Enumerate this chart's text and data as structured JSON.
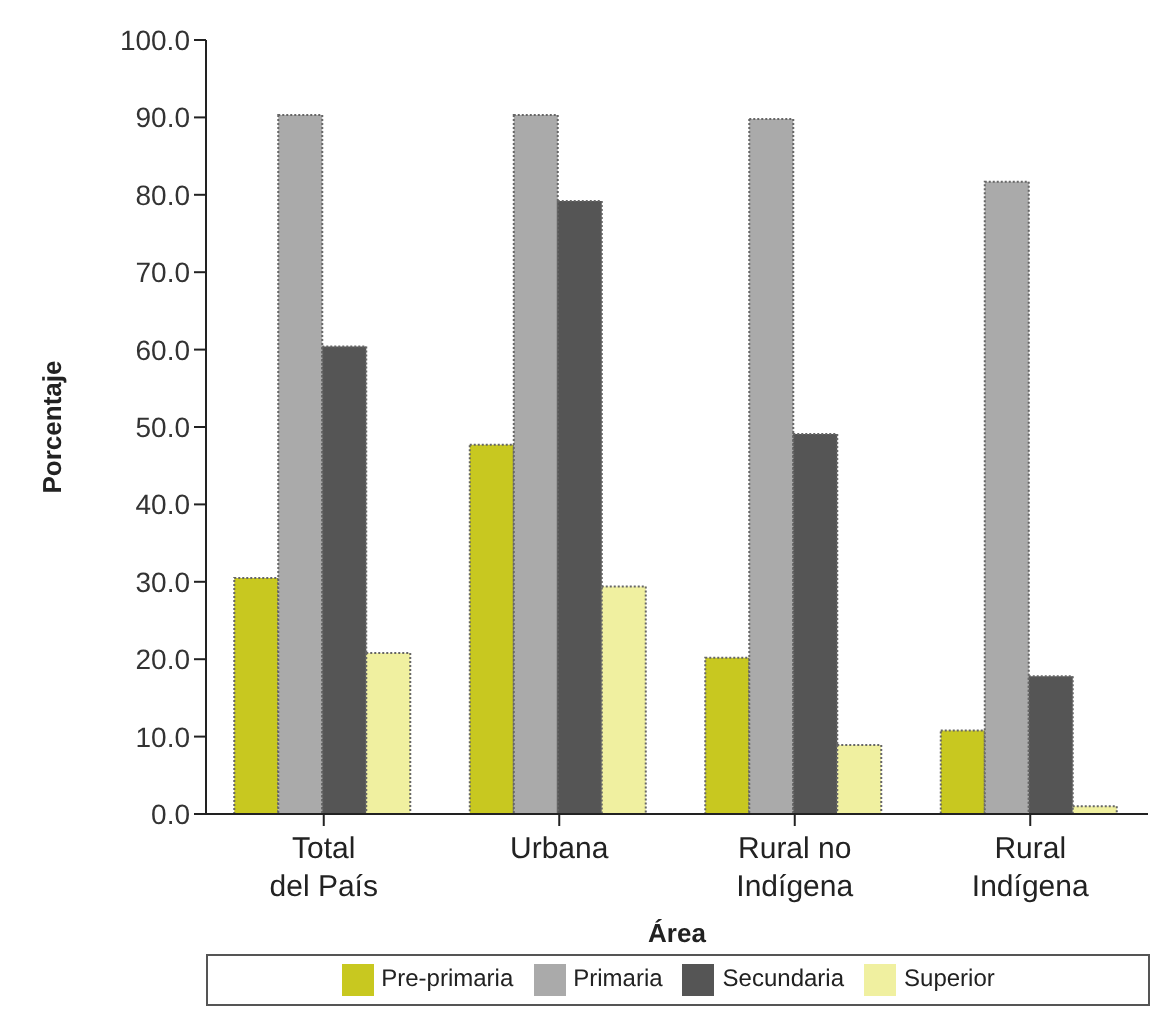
{
  "chart_data": {
    "type": "bar",
    "xlabel": "Área",
    "ylabel": "Porcentaje",
    "categories": [
      "Total\ndel País",
      "Urbana",
      "Rural no\nIndígena",
      "Rural\nIndígena"
    ],
    "series": [
      {
        "name": "Pre-primaria",
        "color": "#c8c820",
        "values": [
          30.5,
          47.7,
          20.2,
          10.8
        ]
      },
      {
        "name": "Primaria",
        "color": "#aaaaaa",
        "values": [
          90.3,
          90.3,
          89.8,
          81.7
        ]
      },
      {
        "name": "Secundaria",
        "color": "#555555",
        "values": [
          60.4,
          79.2,
          49.1,
          17.8
        ]
      },
      {
        "name": "Superior",
        "color": "#f0f0a0",
        "values": [
          20.8,
          29.4,
          8.9,
          1.0
        ]
      }
    ],
    "ylim": [
      0,
      100
    ],
    "yticks": [
      {
        "value": 0,
        "label": "0.0"
      },
      {
        "value": 10,
        "label": "10.0"
      },
      {
        "value": 20,
        "label": "20.0"
      },
      {
        "value": 30,
        "label": "30.0"
      },
      {
        "value": 40,
        "label": "40.0"
      },
      {
        "value": 50,
        "label": "50.0"
      },
      {
        "value": 60,
        "label": "60.0"
      },
      {
        "value": 70,
        "label": "70.0"
      },
      {
        "value": 80,
        "label": "80.0"
      },
      {
        "value": 90,
        "label": "90.0"
      },
      {
        "value": 100,
        "label": "100.0"
      }
    ],
    "grid": false,
    "legend": "bottom"
  }
}
